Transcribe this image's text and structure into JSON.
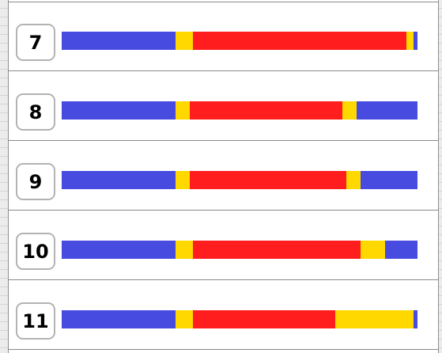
{
  "colors": {
    "blue": "#474be0",
    "yellow": "#ffd800",
    "red": "#ff1d1d"
  },
  "rows": [
    {
      "label": "7",
      "segments": [
        {
          "color": "blue",
          "fraction": 0.32
        },
        {
          "color": "yellow",
          "fraction": 0.049
        },
        {
          "color": "red",
          "fraction": 0.6
        },
        {
          "color": "yellow",
          "fraction": 0.02
        },
        {
          "color": "blue",
          "fraction": 0.011
        }
      ]
    },
    {
      "label": "8",
      "segments": [
        {
          "color": "blue",
          "fraction": 0.32
        },
        {
          "color": "yellow",
          "fraction": 0.04
        },
        {
          "color": "red",
          "fraction": 0.429
        },
        {
          "color": "yellow",
          "fraction": 0.04
        },
        {
          "color": "blue",
          "fraction": 0.171
        }
      ]
    },
    {
      "label": "9",
      "segments": [
        {
          "color": "blue",
          "fraction": 0.32
        },
        {
          "color": "yellow",
          "fraction": 0.04
        },
        {
          "color": "red",
          "fraction": 0.44
        },
        {
          "color": "yellow",
          "fraction": 0.04
        },
        {
          "color": "blue",
          "fraction": 0.16
        }
      ]
    },
    {
      "label": "10",
      "segments": [
        {
          "color": "blue",
          "fraction": 0.32
        },
        {
          "color": "yellow",
          "fraction": 0.049
        },
        {
          "color": "red",
          "fraction": 0.471
        },
        {
          "color": "yellow",
          "fraction": 0.069
        },
        {
          "color": "blue",
          "fraction": 0.091
        }
      ]
    },
    {
      "label": "11",
      "segments": [
        {
          "color": "blue",
          "fraction": 0.32
        },
        {
          "color": "yellow",
          "fraction": 0.049
        },
        {
          "color": "red",
          "fraction": 0.4
        },
        {
          "color": "yellow",
          "fraction": 0.22
        },
        {
          "color": "blue",
          "fraction": 0.011
        }
      ]
    }
  ]
}
